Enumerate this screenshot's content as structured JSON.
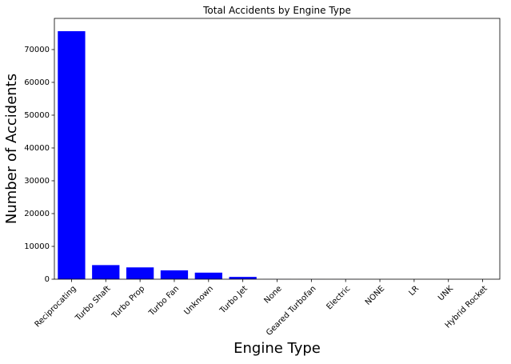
{
  "chart_data": {
    "type": "bar",
    "title": "Total Accidents by Engine Type",
    "xlabel": "Engine Type",
    "ylabel": "Number of Accidents",
    "categories": [
      "Reciprocating",
      "Turbo Shaft",
      "Turbo Prop",
      "Turbo Fan",
      "Unknown",
      "Turbo Jet",
      "None",
      "Geared Turbofan",
      "Electric",
      "NONE",
      "LR",
      "UNK",
      "Hybrid Rocket"
    ],
    "values": [
      75600,
      4300,
      3600,
      2700,
      2000,
      700,
      20,
      10,
      10,
      2,
      2,
      1,
      1
    ],
    "ylim": [
      0,
      79500
    ],
    "yticks": [
      0,
      10000,
      20000,
      30000,
      40000,
      50000,
      60000,
      70000
    ],
    "grid": false,
    "bar_color": "#0000ff"
  }
}
